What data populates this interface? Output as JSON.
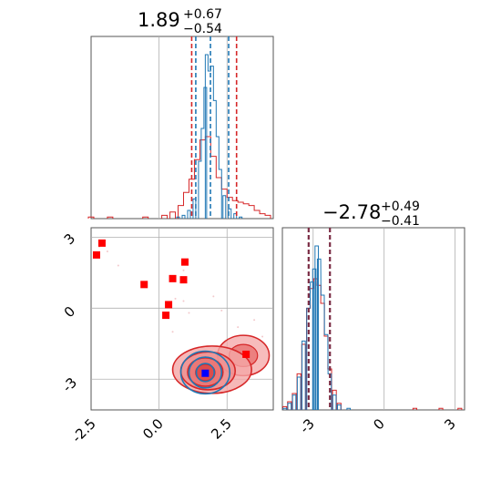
{
  "chart_data": [
    {
      "type": "histogram",
      "panel": "param1-marginal",
      "title": {
        "median": "1.89",
        "plus": "+0.67",
        "minus": "−0.54"
      },
      "xlim": [
        -2.5,
        4.2
      ],
      "blue_bins": [
        {
          "x": 0.7,
          "h": 0.01
        },
        {
          "x": 0.9,
          "h": 0.02
        },
        {
          "x": 1.1,
          "h": 0.05
        },
        {
          "x": 1.3,
          "h": 0.12
        },
        {
          "x": 1.5,
          "h": 0.35
        },
        {
          "x": 1.6,
          "h": 0.55
        },
        {
          "x": 1.7,
          "h": 0.8
        },
        {
          "x": 1.75,
          "h": 1.0
        },
        {
          "x": 1.85,
          "h": 0.9
        },
        {
          "x": 1.95,
          "h": 0.93
        },
        {
          "x": 2.05,
          "h": 0.72
        },
        {
          "x": 2.15,
          "h": 0.5
        },
        {
          "x": 2.25,
          "h": 0.3
        },
        {
          "x": 2.4,
          "h": 0.14
        },
        {
          "x": 2.6,
          "h": 0.06
        },
        {
          "x": 2.8,
          "h": 0.03
        },
        {
          "x": 3.0,
          "h": 0.01
        }
      ],
      "red_bins": [
        {
          "x": -2.5,
          "h": 0.01
        },
        {
          "x": -1.8,
          "h": 0.01
        },
        {
          "x": -0.5,
          "h": 0.01
        },
        {
          "x": 0.2,
          "h": 0.02
        },
        {
          "x": 0.5,
          "h": 0.04
        },
        {
          "x": 0.8,
          "h": 0.08
        },
        {
          "x": 1.0,
          "h": 0.16
        },
        {
          "x": 1.2,
          "h": 0.24
        },
        {
          "x": 1.4,
          "h": 0.36
        },
        {
          "x": 1.6,
          "h": 0.48
        },
        {
          "x": 1.8,
          "h": 0.5
        },
        {
          "x": 2.0,
          "h": 0.38
        },
        {
          "x": 2.2,
          "h": 0.25
        },
        {
          "x": 2.4,
          "h": 0.18
        },
        {
          "x": 2.6,
          "h": 0.13
        },
        {
          "x": 2.8,
          "h": 0.11
        },
        {
          "x": 3.0,
          "h": 0.1
        },
        {
          "x": 3.2,
          "h": 0.09
        },
        {
          "x": 3.4,
          "h": 0.08
        },
        {
          "x": 3.6,
          "h": 0.05
        },
        {
          "x": 3.8,
          "h": 0.03
        },
        {
          "x": 4.0,
          "h": 0.02
        }
      ],
      "blue_quantile_lines": [
        1.35,
        1.89,
        2.56
      ],
      "red_quantile_lines": [
        1.2,
        2.85
      ]
    },
    {
      "type": "histogram",
      "panel": "param2-marginal",
      "title": {
        "median": "−2.78",
        "plus": "+0.49",
        "minus": "−0.41"
      },
      "xlim": [
        -4.3,
        3.4
      ],
      "xticks": [
        "-3",
        "0",
        "3"
      ],
      "blue_bins": [
        {
          "x": -4.2,
          "h": 0.01
        },
        {
          "x": -4.0,
          "h": 0.04
        },
        {
          "x": -3.8,
          "h": 0.09
        },
        {
          "x": -3.6,
          "h": 0.2
        },
        {
          "x": -3.4,
          "h": 0.42
        },
        {
          "x": -3.2,
          "h": 0.62
        },
        {
          "x": -3.05,
          "h": 0.78
        },
        {
          "x": -2.95,
          "h": 0.86
        },
        {
          "x": -2.85,
          "h": 1.0
        },
        {
          "x": -2.75,
          "h": 0.92
        },
        {
          "x": -2.6,
          "h": 0.7
        },
        {
          "x": -2.45,
          "h": 0.46
        },
        {
          "x": -2.3,
          "h": 0.22
        },
        {
          "x": -2.1,
          "h": 0.09
        },
        {
          "x": -1.9,
          "h": 0.03
        },
        {
          "x": -1.5,
          "h": 0.01
        }
      ],
      "red_bins": [
        {
          "x": -4.2,
          "h": 0.02
        },
        {
          "x": -4.0,
          "h": 0.05
        },
        {
          "x": -3.8,
          "h": 0.1
        },
        {
          "x": -3.6,
          "h": 0.22
        },
        {
          "x": -3.4,
          "h": 0.4
        },
        {
          "x": -3.2,
          "h": 0.62
        },
        {
          "x": -3.05,
          "h": 0.74
        },
        {
          "x": -2.9,
          "h": 0.8
        },
        {
          "x": -2.75,
          "h": 0.76
        },
        {
          "x": -2.6,
          "h": 0.65
        },
        {
          "x": -2.45,
          "h": 0.45
        },
        {
          "x": -2.3,
          "h": 0.25
        },
        {
          "x": -2.1,
          "h": 0.12
        },
        {
          "x": -1.9,
          "h": 0.04
        },
        {
          "x": 1.3,
          "h": 0.01
        },
        {
          "x": 2.4,
          "h": 0.01
        },
        {
          "x": 3.2,
          "h": 0.01
        }
      ],
      "blue_quantile_lines": [
        -3.19,
        -2.29
      ],
      "red_quantile_lines": [
        -3.19,
        -2.29
      ]
    },
    {
      "type": "scatter",
      "panel": "joint",
      "xlim": [
        -2.5,
        4.2
      ],
      "ylim": [
        -4.3,
        3.4
      ],
      "xticks": [
        "-2.5",
        "0.0",
        "2.5"
      ],
      "yticks": [
        "-3",
        "0",
        "3"
      ],
      "red_points": [
        {
          "x": -2.1,
          "y": 2.75
        },
        {
          "x": -2.3,
          "y": 2.25
        },
        {
          "x": -0.55,
          "y": 1.0
        },
        {
          "x": 0.5,
          "y": 1.25
        },
        {
          "x": 0.9,
          "y": 1.2
        },
        {
          "x": 0.95,
          "y": 1.95
        },
        {
          "x": 0.35,
          "y": 0.15
        },
        {
          "x": 0.25,
          "y": -0.3
        },
        {
          "x": 3.2,
          "y": -1.95
        }
      ],
      "blue_point": {
        "x": 1.7,
        "y": -2.75
      },
      "red_contours": [
        {
          "cx": 1.95,
          "cy": -2.6,
          "rx": 1.45,
          "ry": 1.0
        },
        {
          "cx": 1.8,
          "cy": -2.65,
          "rx": 1.0,
          "ry": 0.8
        },
        {
          "cx": 1.7,
          "cy": -2.7,
          "rx": 0.65,
          "ry": 0.6
        },
        {
          "cx": 1.7,
          "cy": -2.72,
          "rx": 0.35,
          "ry": 0.35
        }
      ],
      "red_lobe": {
        "cx": 3.1,
        "cy": -2.0,
        "rx": 0.95,
        "ry": 0.85
      },
      "blue_contours": [
        {
          "cx": 1.7,
          "cy": -2.72,
          "rx": 0.9,
          "ry": 0.9
        },
        {
          "cx": 1.7,
          "cy": -2.72,
          "rx": 0.6,
          "ry": 0.65
        },
        {
          "cx": 1.7,
          "cy": -2.72,
          "rx": 0.33,
          "ry": 0.38
        }
      ]
    }
  ],
  "colors": {
    "blue": "#1f77b4",
    "red": "#d62728",
    "red_fill": "#f4a6a6",
    "red_fill_dark": "#e8706f",
    "grid": "#b0b0b0",
    "quantile_dash": "#7b2d45",
    "marker_red": "#ff0000",
    "marker_blue": "#0000ff"
  }
}
